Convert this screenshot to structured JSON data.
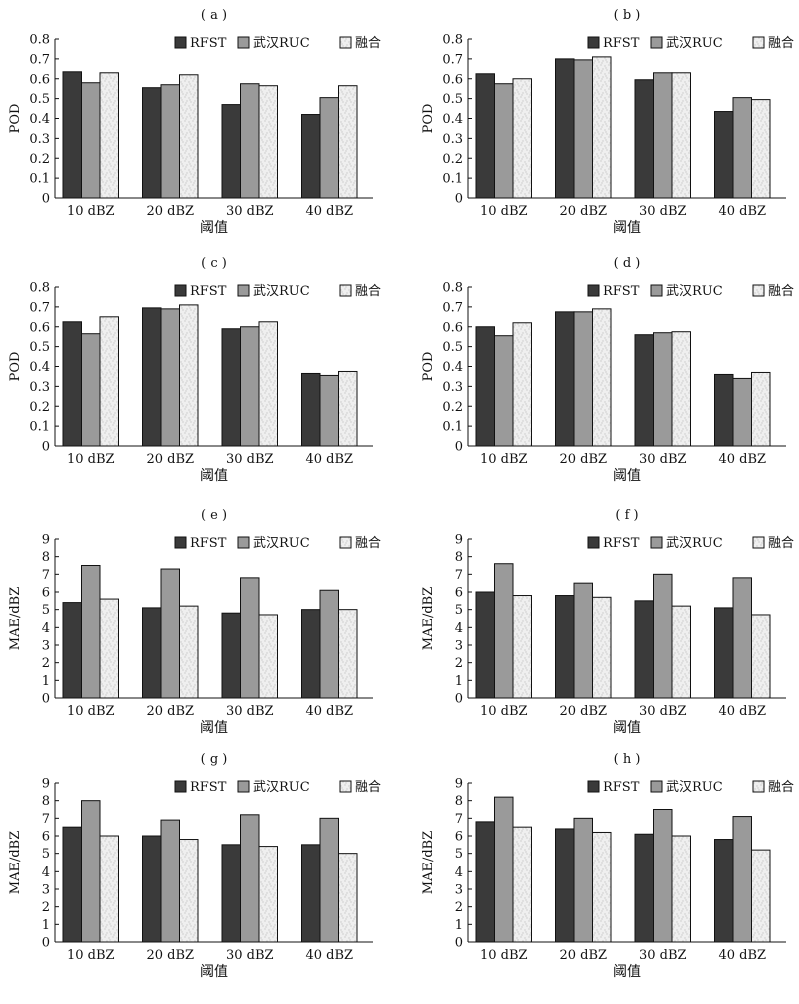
{
  "legend_labels": [
    "RFST",
    "武汉RUC",
    "融合"
  ],
  "series_colors": [
    "#3a3a3a",
    "#9a9a9a",
    "#efefef"
  ],
  "chart_data": [
    {
      "type": "bar",
      "panel_label": "( a )",
      "ylabel": "POD",
      "xlabel": "阈值",
      "categories": [
        "10 dBZ",
        "20 dBZ",
        "30 dBZ",
        "40 dBZ"
      ],
      "ylim": [
        0,
        0.8
      ],
      "yticks": [
        "0",
        "0.1",
        "0.2",
        "0.3",
        "0.4",
        "0.5",
        "0.6",
        "0.7",
        "0.8"
      ],
      "legend": "top-right",
      "series": [
        {
          "name": "RFST",
          "values": [
            0.635,
            0.555,
            0.47,
            0.42
          ]
        },
        {
          "name": "武汉RUC",
          "values": [
            0.58,
            0.57,
            0.575,
            0.505
          ]
        },
        {
          "name": "融合",
          "values": [
            0.63,
            0.62,
            0.565,
            0.565
          ]
        }
      ]
    },
    {
      "type": "bar",
      "panel_label": "( b )",
      "ylabel": "POD",
      "xlabel": "阈值",
      "categories": [
        "10 dBZ",
        "20 dBZ",
        "30 dBZ",
        "40 dBZ"
      ],
      "ylim": [
        0,
        0.8
      ],
      "yticks": [
        "0",
        "0.1",
        "0.2",
        "0.3",
        "0.4",
        "0.5",
        "0.6",
        "0.7",
        "0.8"
      ],
      "legend": "top-right",
      "series": [
        {
          "name": "RFST",
          "values": [
            0.625,
            0.7,
            0.595,
            0.435
          ]
        },
        {
          "name": "武汉RUC",
          "values": [
            0.575,
            0.695,
            0.63,
            0.505
          ]
        },
        {
          "name": "融合",
          "values": [
            0.6,
            0.71,
            0.63,
            0.495
          ]
        }
      ]
    },
    {
      "type": "bar",
      "panel_label": "( c )",
      "ylabel": "POD",
      "xlabel": "阈值",
      "categories": [
        "10 dBZ",
        "20 dBZ",
        "30 dBZ",
        "40 dBZ"
      ],
      "ylim": [
        0,
        0.8
      ],
      "yticks": [
        "0",
        "0.1",
        "0.2",
        "0.3",
        "0.4",
        "0.5",
        "0.6",
        "0.7",
        "0.8"
      ],
      "legend": "top-right",
      "series": [
        {
          "name": "RFST",
          "values": [
            0.625,
            0.695,
            0.59,
            0.365
          ]
        },
        {
          "name": "武汉RUC",
          "values": [
            0.565,
            0.69,
            0.6,
            0.355
          ]
        },
        {
          "name": "融合",
          "values": [
            0.65,
            0.71,
            0.625,
            0.375
          ]
        }
      ]
    },
    {
      "type": "bar",
      "panel_label": "( d )",
      "ylabel": "POD",
      "xlabel": "阈值",
      "categories": [
        "10 dBZ",
        "20 dBZ",
        "30 dBZ",
        "40 dBZ"
      ],
      "ylim": [
        0,
        0.8
      ],
      "yticks": [
        "0",
        "0.1",
        "0.2",
        "0.3",
        "0.4",
        "0.5",
        "0.6",
        "0.7",
        "0.8"
      ],
      "legend": "top-right",
      "series": [
        {
          "name": "RFST",
          "values": [
            0.6,
            0.675,
            0.56,
            0.36
          ]
        },
        {
          "name": "武汉RUC",
          "values": [
            0.555,
            0.675,
            0.57,
            0.34
          ]
        },
        {
          "name": "融合",
          "values": [
            0.62,
            0.69,
            0.575,
            0.37
          ]
        }
      ]
    },
    {
      "type": "bar",
      "panel_label": "( e )",
      "ylabel": "MAE/dBZ",
      "xlabel": "阈值",
      "categories": [
        "10 dBZ",
        "20 dBZ",
        "30 dBZ",
        "40 dBZ"
      ],
      "ylim": [
        0,
        9
      ],
      "yticks": [
        "0",
        "1",
        "2",
        "3",
        "4",
        "5",
        "6",
        "7",
        "8",
        "9"
      ],
      "legend": "top-right",
      "series": [
        {
          "name": "RFST",
          "values": [
            5.4,
            5.1,
            4.8,
            5.0
          ]
        },
        {
          "name": "武汉RUC",
          "values": [
            7.5,
            7.3,
            6.8,
            6.1
          ]
        },
        {
          "name": "融合",
          "values": [
            5.6,
            5.2,
            4.7,
            5.0
          ]
        }
      ]
    },
    {
      "type": "bar",
      "panel_label": "( f )",
      "ylabel": "MAE/dBZ",
      "xlabel": "阈值",
      "categories": [
        "10 dBZ",
        "20 dBZ",
        "30 dBZ",
        "40 dBZ"
      ],
      "ylim": [
        0,
        9
      ],
      "yticks": [
        "0",
        "1",
        "2",
        "3",
        "4",
        "5",
        "6",
        "7",
        "8",
        "9"
      ],
      "legend": "top-right",
      "series": [
        {
          "name": "RFST",
          "values": [
            6.0,
            5.8,
            5.5,
            5.1
          ]
        },
        {
          "name": "武汉RUC",
          "values": [
            7.6,
            6.5,
            7.0,
            6.8
          ]
        },
        {
          "name": "融合",
          "values": [
            5.8,
            5.7,
            5.2,
            4.7
          ]
        }
      ]
    },
    {
      "type": "bar",
      "panel_label": "( g )",
      "ylabel": "MAE/dBZ",
      "xlabel": "阈值",
      "categories": [
        "10 dBZ",
        "20 dBZ",
        "30 dBZ",
        "40 dBZ"
      ],
      "ylim": [
        0,
        9
      ],
      "yticks": [
        "0",
        "1",
        "2",
        "3",
        "4",
        "5",
        "6",
        "7",
        "8",
        "9"
      ],
      "legend": "top-right",
      "series": [
        {
          "name": "RFST",
          "values": [
            6.5,
            6.0,
            5.5,
            5.5
          ]
        },
        {
          "name": "武汉RUC",
          "values": [
            8.0,
            6.9,
            7.2,
            7.0
          ]
        },
        {
          "name": "融合",
          "values": [
            6.0,
            5.8,
            5.4,
            5.0
          ]
        }
      ]
    },
    {
      "type": "bar",
      "panel_label": "( h )",
      "ylabel": "MAE/dBZ",
      "xlabel": "阈值",
      "categories": [
        "10 dBZ",
        "20 dBZ",
        "30 dBZ",
        "40 dBZ"
      ],
      "ylim": [
        0,
        9
      ],
      "yticks": [
        "0",
        "1",
        "2",
        "3",
        "4",
        "5",
        "6",
        "7",
        "8",
        "9"
      ],
      "legend": "top-right",
      "series": [
        {
          "name": "RFST",
          "values": [
            6.8,
            6.4,
            6.1,
            5.8
          ]
        },
        {
          "name": "武汉RUC",
          "values": [
            8.2,
            7.0,
            7.5,
            7.1
          ]
        },
        {
          "name": "融合",
          "values": [
            6.5,
            6.2,
            6.0,
            5.2
          ]
        }
      ]
    }
  ]
}
